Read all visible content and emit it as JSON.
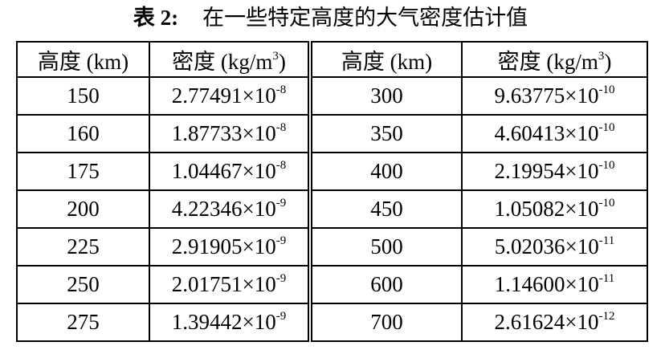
{
  "title": {
    "label": "表 2:",
    "text": "在一些特定高度的大气密度估计值"
  },
  "headers": {
    "altitude": "高度 (km)",
    "density_prefix": "密度 (kg/m",
    "density_sup": "3",
    "density_suffix": ")"
  },
  "rows": [
    {
      "alt1": "150",
      "m1": "2.77491",
      "e1": "-8",
      "alt2": "300",
      "m2": "9.63775",
      "e2": "-10"
    },
    {
      "alt1": "160",
      "m1": "1.87733",
      "e1": "-8",
      "alt2": "350",
      "m2": "4.60413",
      "e2": "-10"
    },
    {
      "alt1": "175",
      "m1": "1.04467",
      "e1": "-8",
      "alt2": "400",
      "m2": "2.19954",
      "e2": "-10"
    },
    {
      "alt1": "200",
      "m1": "4.22346",
      "e1": "-9",
      "alt2": "450",
      "m2": "1.05082",
      "e2": "-10"
    },
    {
      "alt1": "225",
      "m1": "2.91905",
      "e1": "-9",
      "alt2": "500",
      "m2": "5.02036",
      "e2": "-11"
    },
    {
      "alt1": "250",
      "m1": "2.01751",
      "e1": "-9",
      "alt2": "600",
      "m2": "1.14600",
      "e2": "-11"
    },
    {
      "alt1": "275",
      "m1": "1.39442",
      "e1": "-9",
      "alt2": "700",
      "m2": "2.61624",
      "e2": "-12"
    }
  ],
  "times_ten": "×10"
}
